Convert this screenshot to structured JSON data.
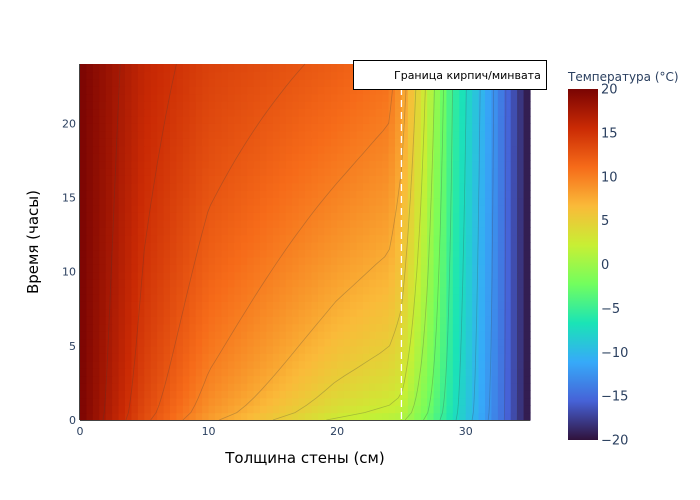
{
  "chart_data": {
    "type": "heatmap",
    "title": "",
    "xlabel": "Толщина стены (см)",
    "ylabel": "Время (часы)",
    "xlim": [
      0,
      35
    ],
    "ylim": [
      0,
      24
    ],
    "x_ticks": [
      "0",
      "10",
      "20",
      "30"
    ],
    "y_ticks": [
      "0",
      "5",
      "10",
      "15",
      "20"
    ],
    "colorbar": {
      "title": "Температура (°C)",
      "range": [
        -20,
        20
      ],
      "ticks": [
        "20",
        "15",
        "10",
        "5",
        "0",
        "−5",
        "−10",
        "−15",
        "−20"
      ],
      "colorscale": [
        "#30123b",
        "#4662d7",
        "#36aaf9",
        "#1ae4b6",
        "#72fe5e",
        "#c8ef34",
        "#faba39",
        "#f66b19",
        "#ca2a04",
        "#7a0403"
      ]
    },
    "boundary": {
      "x": 25,
      "label": "Граница кирпич/минвата"
    },
    "legend": {
      "placement": "top-right",
      "entries": [
        "Граница кирпич/минвата"
      ]
    },
    "series": [
      {
        "name": "Температура",
        "description_points": {
          "t0": {
            "x": [
              0,
              5,
              10,
              15,
              20,
              23,
              25,
              27,
              30,
              33,
              35
            ],
            "z": [
              20,
              13,
              8,
              5,
              2,
              1,
              0.5,
              -3,
              -9,
              -15,
              -20
            ]
          },
          "t24": {
            "x": [
              0,
              5,
              10,
              15,
              20,
              24,
              25,
              26.5,
              29,
              32,
              35
            ],
            "z": [
              20,
              16,
              14,
              13,
              12,
              11,
              9,
              4,
              -5,
              -12,
              -20
            ]
          }
        }
      }
    ]
  }
}
